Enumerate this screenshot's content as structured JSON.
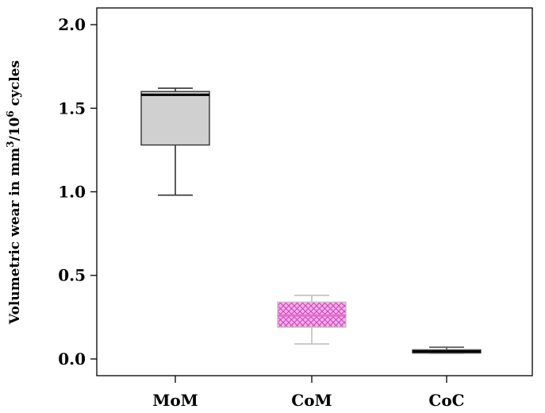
{
  "chart_data": {
    "type": "box",
    "ylabel_parts": {
      "prefix": "Volumetric wear in mm",
      "exp1": "3",
      "mid": "/10",
      "exp2": "6",
      "suffix": " cycles"
    },
    "ylim": [
      -0.1,
      2.1
    ],
    "yticks": [
      "0.0",
      "0.5",
      "1.0",
      "1.5",
      "2.0"
    ],
    "categories": [
      "MoM",
      "CoM",
      "CoC"
    ],
    "boxes": [
      {
        "name": "MoM",
        "whisker_low": 0.98,
        "q1": 1.28,
        "median": 1.58,
        "q3": 1.6,
        "whisker_high": 1.62,
        "fill": "#d0d0d0",
        "stroke": "#333333",
        "median_color": "#000000",
        "pattern": "none"
      },
      {
        "name": "CoM",
        "whisker_low": 0.09,
        "q1": 0.19,
        "median": 0.26,
        "q3": 0.34,
        "whisker_high": 0.38,
        "fill": "#f6b3e6",
        "stroke": "#c0c0c0",
        "median_color": "#e070d0",
        "pattern": "crosshatch"
      },
      {
        "name": "CoC",
        "whisker_low": 0.035,
        "q1": 0.035,
        "median": 0.045,
        "q3": 0.055,
        "whisker_high": 0.07,
        "fill": "#d020b8",
        "stroke": "#555555",
        "median_color": "#000000",
        "pattern": "none"
      }
    ],
    "grid": false,
    "legend": "none"
  }
}
